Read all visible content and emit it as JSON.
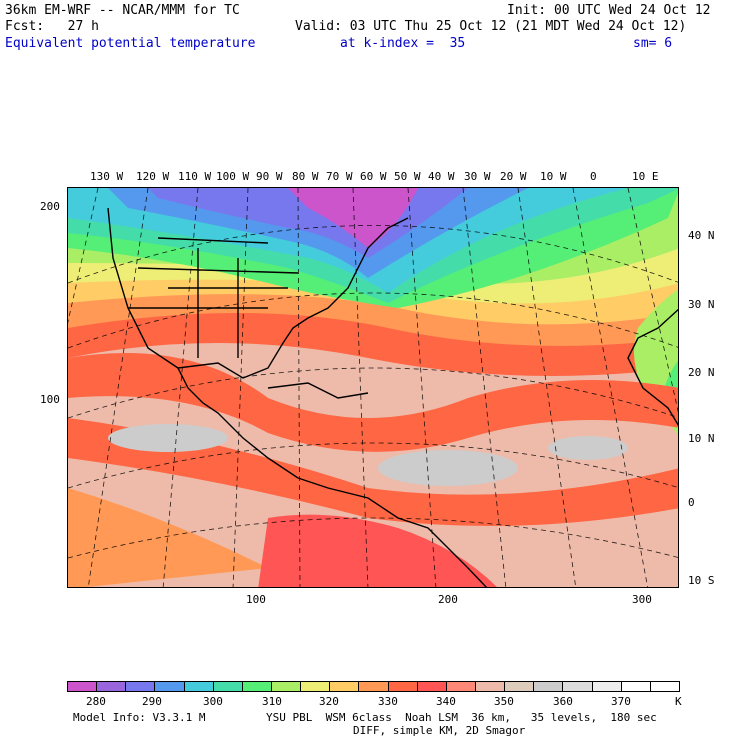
{
  "header": {
    "model": "36km EM-WRF -- NCAR/MMM for TC",
    "init": "Init: 00 UTC Wed 24 Oct 12",
    "fcst": "Fcst:   27 h",
    "valid": "Valid: 03 UTC Thu 25 Oct 12 (21 MDT Wed 24 Oct 12)",
    "field": "Equivalent potential temperature",
    "level": "at k-index =  35",
    "smooth": "sm= 6"
  },
  "lon_labels": [
    "130 W",
    "120 W",
    "110 W",
    "100 W",
    "90 W",
    "80 W",
    "70 W",
    "60 W",
    "50 W",
    "40 W",
    "30 W",
    "20 W",
    "10 W",
    "0",
    "10 E"
  ],
  "lat_labels": [
    "40 N",
    "30 N",
    "20 N",
    "10 N",
    "0",
    "10 S"
  ],
  "left_axis": [
    "200",
    "100"
  ],
  "bottom_axis": [
    "100",
    "200",
    "300"
  ],
  "colorbar": {
    "colors": [
      "#cc55cc",
      "#9966dd",
      "#7777ee",
      "#5599ee",
      "#44ccdd",
      "#44ddaa",
      "#55ee77",
      "#aaee66",
      "#eeee77",
      "#ffcc66",
      "#ff9955",
      "#ff6644",
      "#ff5555",
      "#ff8877",
      "#eebbaa",
      "#ddccbb",
      "#cccccc",
      "#dddddd",
      "#eeeeee",
      "#ffffff",
      "#ffffff"
    ],
    "labels": [
      "280",
      "290",
      "300",
      "310",
      "320",
      "330",
      "340",
      "350",
      "360",
      "370",
      "K"
    ]
  },
  "footer": {
    "line1_left": "Model Info: V3.3.1 M",
    "line1_right": "YSU PBL  WSM 6class  Noah LSM  36 km,   35 levels,  180 sec",
    "line2": "DIFF, simple KM, 2D Smagor"
  }
}
